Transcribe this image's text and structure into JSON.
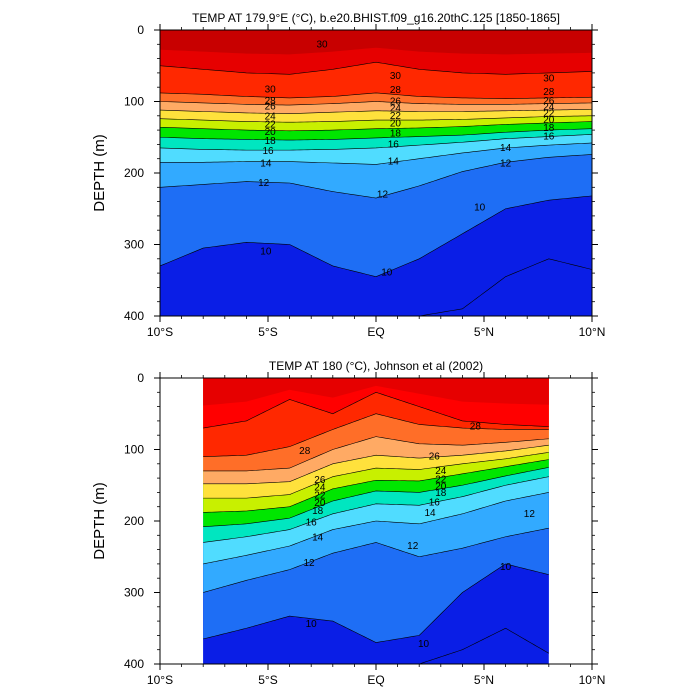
{
  "chart_data": [
    {
      "type": "heatmap",
      "subtype": "filled-contour",
      "title": "TEMP AT 179.9°E (°C), b.e20.BHIST.f09_g16.20thC.125 [1850-1865]",
      "xlabel": "",
      "ylabel": "DEPTH (m)",
      "xlim": [
        -10,
        10
      ],
      "ylim": [
        400,
        0
      ],
      "x_tick_labels": [
        "10°S",
        "5°S",
        "EQ",
        "5°N",
        "10°N"
      ],
      "x_ticks": [
        -10,
        -5,
        0,
        5,
        10
      ],
      "y_tick_labels": [
        "0",
        "100",
        "200",
        "300",
        "400"
      ],
      "y_ticks": [
        0,
        100,
        200,
        300,
        400
      ],
      "data_lon_range": [
        -10,
        10
      ],
      "contour_levels": [
        8,
        9,
        10,
        11,
        12,
        13,
        14,
        15,
        16,
        17,
        18,
        19,
        20,
        21,
        22,
        23,
        24,
        25,
        26,
        27,
        28,
        29,
        30,
        31
      ],
      "x": [
        -10,
        -8,
        -6,
        -4,
        -2,
        0,
        2,
        4,
        6,
        8,
        10
      ],
      "isotherm_depths": {
        "30": [
          50,
          55,
          60,
          62,
          55,
          45,
          55,
          60,
          62,
          60,
          58
        ],
        "28": [
          88,
          90,
          93,
          95,
          93,
          88,
          93,
          95,
          96,
          95,
          94
        ],
        "26": [
          100,
          102,
          104,
          105,
          103,
          100,
          103,
          104,
          104,
          103,
          102
        ],
        "24": [
          112,
          114,
          116,
          117,
          115,
          113,
          114,
          114,
          113,
          112,
          111
        ],
        "22": [
          124,
          126,
          128,
          129,
          128,
          126,
          126,
          125,
          123,
          121,
          120
        ],
        "20": [
          136,
          138,
          140,
          141,
          140,
          138,
          137,
          135,
          132,
          130,
          128
        ],
        "18": [
          150,
          152,
          153,
          154,
          153,
          151,
          149,
          147,
          143,
          140,
          138
        ],
        "16": [
          165,
          167,
          168,
          168,
          167,
          165,
          161,
          157,
          152,
          149,
          146
        ],
        "14": [
          185,
          185,
          184,
          184,
          186,
          188,
          180,
          172,
          165,
          161,
          158
        ],
        "12": [
          220,
          216,
          212,
          214,
          226,
          235,
          218,
          198,
          185,
          178,
          174
        ],
        "10": [
          330,
          305,
          297,
          300,
          330,
          345,
          320,
          285,
          250,
          238,
          232
        ],
        "8": [
          400,
          400,
          400,
          400,
          400,
          400,
          400,
          390,
          345,
          320,
          335
        ]
      },
      "labels": [
        {
          "value": "30",
          "x": -2.5,
          "y": 20
        },
        {
          "value": "30",
          "x": 0.9,
          "y": 64
        },
        {
          "value": "30",
          "x": -4.9,
          "y": 83
        },
        {
          "value": "30",
          "x": 8.0,
          "y": 68
        },
        {
          "value": "28",
          "x": -4.9,
          "y": 99
        },
        {
          "value": "28",
          "x": 0.9,
          "y": 84
        },
        {
          "value": "28",
          "x": 8.0,
          "y": 87
        },
        {
          "value": "26",
          "x": -4.9,
          "y": 107
        },
        {
          "value": "26",
          "x": 0.9,
          "y": 100
        },
        {
          "value": "26",
          "x": 8.0,
          "y": 99
        },
        {
          "value": "24",
          "x": -4.9,
          "y": 121
        },
        {
          "value": "24",
          "x": 0.9,
          "y": 110
        },
        {
          "value": "24",
          "x": 8.0,
          "y": 108
        },
        {
          "value": "22",
          "x": -4.9,
          "y": 132
        },
        {
          "value": "22",
          "x": 0.9,
          "y": 120
        },
        {
          "value": "22",
          "x": 8.0,
          "y": 117
        },
        {
          "value": "20",
          "x": -4.9,
          "y": 143
        },
        {
          "value": "20",
          "x": 0.9,
          "y": 131
        },
        {
          "value": "20",
          "x": 8.0,
          "y": 126
        },
        {
          "value": "18",
          "x": -4.9,
          "y": 155
        },
        {
          "value": "18",
          "x": 0.9,
          "y": 145
        },
        {
          "value": "18",
          "x": 8.0,
          "y": 137
        },
        {
          "value": "16",
          "x": -5.0,
          "y": 169
        },
        {
          "value": "16",
          "x": 0.8,
          "y": 160
        },
        {
          "value": "16",
          "x": 8.0,
          "y": 149
        },
        {
          "value": "14",
          "x": -5.1,
          "y": 187
        },
        {
          "value": "14",
          "x": 0.8,
          "y": 184
        },
        {
          "value": "14",
          "x": 6.0,
          "y": 165
        },
        {
          "value": "12",
          "x": -5.2,
          "y": 214
        },
        {
          "value": "12",
          "x": 0.3,
          "y": 230
        },
        {
          "value": "12",
          "x": 6.0,
          "y": 187
        },
        {
          "value": "10",
          "x": -5.1,
          "y": 310
        },
        {
          "value": "10",
          "x": 0.5,
          "y": 339
        },
        {
          "value": "10",
          "x": 4.8,
          "y": 248
        }
      ]
    },
    {
      "type": "heatmap",
      "subtype": "filled-contour",
      "title": "TEMP AT 180 (°C), Johnson et al (2002)",
      "xlabel": "",
      "ylabel": "DEPTH (m)",
      "xlim": [
        -10,
        10
      ],
      "ylim": [
        400,
        0
      ],
      "x_tick_labels": [
        "10°S",
        "5°S",
        "EQ",
        "5°N",
        "10°N"
      ],
      "x_ticks": [
        -10,
        -5,
        0,
        5,
        10
      ],
      "y_tick_labels": [
        "0",
        "100",
        "200",
        "300",
        "400"
      ],
      "y_ticks": [
        0,
        100,
        200,
        300,
        400
      ],
      "data_lon_range": [
        -8,
        8
      ],
      "contour_levels": [
        8,
        9,
        10,
        11,
        12,
        13,
        14,
        15,
        16,
        17,
        18,
        19,
        20,
        21,
        22,
        23,
        24,
        25,
        26,
        27,
        28,
        29,
        30,
        31
      ],
      "x": [
        -8,
        -6,
        -4,
        -2,
        0,
        2,
        4,
        6,
        8
      ],
      "isotherm_depths": {
        "29": [
          70,
          60,
          30,
          50,
          20,
          40,
          60,
          65,
          68
        ],
        "28": [
          110,
          108,
          96,
          72,
          50,
          65,
          70,
          72,
          72
        ],
        "26": [
          130,
          130,
          126,
          100,
          82,
          92,
          94,
          90,
          85
        ],
        "24": [
          148,
          148,
          145,
          120,
          108,
          112,
          108,
          102,
          94
        ],
        "22": [
          168,
          168,
          163,
          138,
          126,
          128,
          120,
          113,
          104
        ],
        "20": [
          188,
          186,
          180,
          155,
          143,
          144,
          134,
          124,
          114
        ],
        "18": [
          208,
          204,
          196,
          172,
          158,
          160,
          150,
          137,
          125
        ],
        "16": [
          230,
          222,
          212,
          190,
          176,
          178,
          166,
          150,
          138
        ],
        "14": [
          260,
          248,
          235,
          212,
          200,
          204,
          190,
          172,
          160
        ],
        "12": [
          300,
          283,
          268,
          245,
          230,
          250,
          238,
          222,
          210
        ],
        "10": [
          365,
          350,
          333,
          340,
          370,
          360,
          300,
          260,
          275
        ],
        "8": [
          400,
          400,
          400,
          400,
          400,
          400,
          380,
          350,
          385
        ]
      },
      "labels": [
        {
          "value": "28",
          "x": -3.3,
          "y": 102
        },
        {
          "value": "28",
          "x": 4.6,
          "y": 68
        },
        {
          "value": "26",
          "x": -2.6,
          "y": 143
        },
        {
          "value": "26",
          "x": 2.7,
          "y": 110
        },
        {
          "value": "24",
          "x": -2.6,
          "y": 153
        },
        {
          "value": "24",
          "x": 3.0,
          "y": 130
        },
        {
          "value": "22",
          "x": -2.6,
          "y": 164
        },
        {
          "value": "22",
          "x": 3.0,
          "y": 142
        },
        {
          "value": "20",
          "x": -2.6,
          "y": 175
        },
        {
          "value": "20",
          "x": 3.0,
          "y": 152
        },
        {
          "value": "18",
          "x": -2.7,
          "y": 186
        },
        {
          "value": "18",
          "x": 3.0,
          "y": 161
        },
        {
          "value": "16",
          "x": -3.0,
          "y": 202
        },
        {
          "value": "16",
          "x": 2.7,
          "y": 174
        },
        {
          "value": "14",
          "x": -2.7,
          "y": 223
        },
        {
          "value": "14",
          "x": 2.5,
          "y": 189
        },
        {
          "value": "12",
          "x": -3.1,
          "y": 259
        },
        {
          "value": "12",
          "x": 1.7,
          "y": 235
        },
        {
          "value": "12",
          "x": 7.1,
          "y": 190
        },
        {
          "value": "10",
          "x": -3.0,
          "y": 344
        },
        {
          "value": "10",
          "x": 2.2,
          "y": 372
        },
        {
          "value": "10",
          "x": 6.0,
          "y": 264
        }
      ]
    }
  ]
}
